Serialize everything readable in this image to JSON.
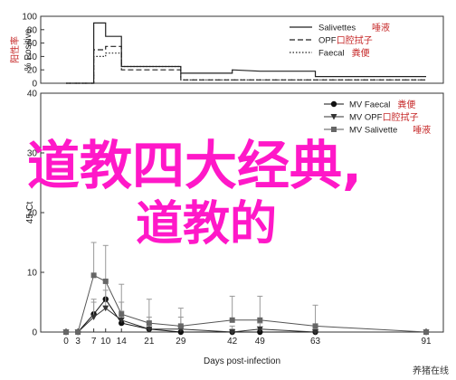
{
  "chart_data": [
    {
      "type": "line",
      "ylabel": "% Positive",
      "ylabel_cn": "阳性率",
      "ylim": [
        0,
        100
      ],
      "yticks": [
        "0",
        "20",
        "40",
        "60",
        "80",
        "100"
      ],
      "xlim": [
        0,
        91
      ],
      "series": [
        {
          "name": "Salivettes",
          "name_cn": "唾液",
          "style": "solid",
          "x": [
            0,
            3,
            7,
            7,
            10,
            10,
            14,
            14,
            29,
            29,
            42,
            42,
            49,
            63,
            63,
            91
          ],
          "y": [
            0,
            0,
            0,
            90,
            90,
            70,
            70,
            25,
            25,
            15,
            15,
            20,
            18,
            18,
            10,
            10
          ]
        },
        {
          "name": "OPF",
          "name_cn": "口腔拭子",
          "style": "dashed",
          "x": [
            0,
            7,
            7,
            10,
            10,
            14,
            14,
            29,
            29,
            91
          ],
          "y": [
            0,
            0,
            50,
            50,
            55,
            55,
            20,
            20,
            5,
            5
          ]
        },
        {
          "name": "Faecal",
          "name_cn": "粪便",
          "style": "dotted",
          "x": [
            0,
            7,
            7,
            10,
            10,
            14,
            14,
            29,
            29,
            91
          ],
          "y": [
            0,
            0,
            40,
            40,
            45,
            45,
            25,
            25,
            5,
            5
          ]
        }
      ]
    },
    {
      "type": "line",
      "xlabel": "Days post-infection",
      "ylabel": "45-Ct",
      "ylim": [
        0,
        40
      ],
      "yticks": [
        "0",
        "10",
        "20",
        "30",
        "40"
      ],
      "xticks": [
        "0",
        "3",
        "7",
        "10",
        "14",
        "21",
        "29",
        "42",
        "49",
        "63",
        "91"
      ],
      "xlim": [
        0,
        91
      ],
      "series": [
        {
          "name": "MV Faecal",
          "name_cn": "粪便",
          "marker": "circle",
          "x": [
            0,
            3,
            7,
            10,
            14,
            21,
            29,
            42,
            49,
            63,
            91
          ],
          "y": [
            0,
            0,
            3,
            5.5,
            1.5,
            0.5,
            0,
            0,
            0,
            0,
            0
          ],
          "err": [
            0,
            0,
            2,
            3,
            2,
            1,
            1,
            0.5,
            0.5,
            0.5,
            0
          ]
        },
        {
          "name": "MV OPF",
          "name_cn": "口腔拭子",
          "marker": "triangle",
          "x": [
            0,
            3,
            7,
            10,
            14,
            21,
            29,
            42,
            49,
            63,
            91
          ],
          "y": [
            0,
            0,
            2.5,
            4,
            2,
            0.5,
            0.5,
            0,
            0.5,
            0,
            0
          ],
          "err": [
            0,
            0,
            3,
            3,
            3,
            2,
            2,
            1,
            1,
            1,
            0
          ]
        },
        {
          "name": "MV Salivette",
          "name_cn": "唾液",
          "marker": "square",
          "x": [
            0,
            3,
            7,
            10,
            14,
            21,
            29,
            42,
            49,
            63,
            91
          ],
          "y": [
            0,
            0,
            9.5,
            8.5,
            3,
            1.5,
            1,
            2,
            2,
            1,
            0
          ],
          "err": [
            0,
            0,
            5.5,
            6,
            5,
            4,
            3,
            4,
            4,
            3.5,
            0
          ]
        }
      ]
    }
  ],
  "overlay": {
    "line1": "道教四大经典,",
    "line2": "道教的"
  },
  "watermark": "养猪在线"
}
